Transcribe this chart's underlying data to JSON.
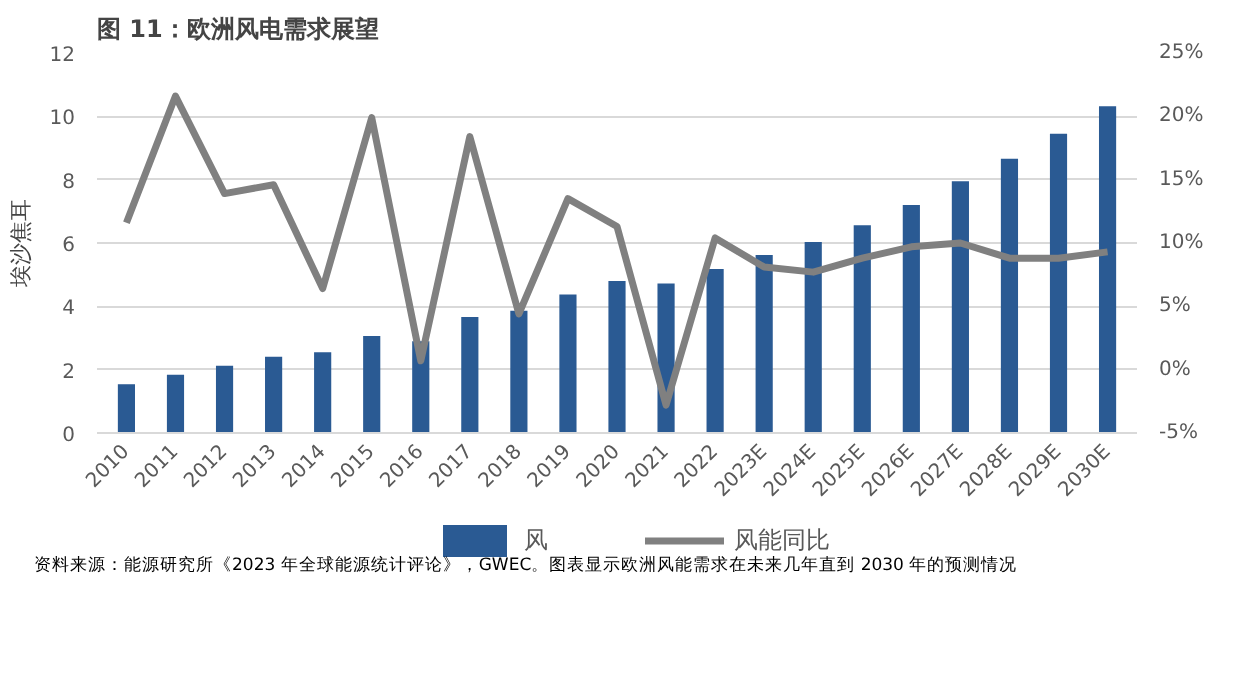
{
  "chart_data": {
    "type": "bar",
    "title": "图 11：欧洲风电需求展望",
    "ylabel": "埃沙焦耳",
    "categories": [
      "2010",
      "2011",
      "2012",
      "2013",
      "2014",
      "2015",
      "2016",
      "2017",
      "2018",
      "2019",
      "2020",
      "2021",
      "2022",
      "2023E",
      "2024E",
      "2025E",
      "2026E",
      "2027E",
      "2028E",
      "2029E",
      "2030E"
    ],
    "series": [
      {
        "name": "风",
        "type": "bar",
        "color": "#2a5a93",
        "values": [
          1.54,
          1.84,
          2.12,
          2.41,
          2.55,
          3.06,
          2.9,
          3.66,
          3.86,
          4.37,
          4.8,
          4.72,
          5.18,
          5.62,
          6.03,
          6.56,
          7.2,
          7.95,
          8.66,
          9.45,
          10.32
        ]
      },
      {
        "name": "风能同比",
        "type": "line",
        "axis": "y2",
        "color": "#808080",
        "values": [
          11.6,
          21.6,
          13.9,
          14.6,
          6.4,
          19.9,
          0.7,
          18.4,
          4.4,
          13.5,
          11.3,
          -2.8,
          10.4,
          8.1,
          7.7,
          8.8,
          9.7,
          10.0,
          8.8,
          8.8,
          9.3
        ]
      }
    ],
    "ylim": [
      0,
      12
    ],
    "yticks": [
      0,
      2,
      4,
      6,
      8,
      10,
      12
    ],
    "y2lim": [
      -5,
      25
    ],
    "y2ticks": [
      {
        "value": -5,
        "label": "-5%"
      },
      {
        "value": 0,
        "label": "0%"
      },
      {
        "value": 5,
        "label": "5%"
      },
      {
        "value": 10,
        "label": "10%"
      },
      {
        "value": 15,
        "label": "15%"
      },
      {
        "value": 20,
        "label": "20%"
      },
      {
        "value": 25,
        "label": "25%"
      }
    ],
    "grid": "y",
    "legend": "bottom",
    "marker": "none",
    "line_style": "solid",
    "annotations": [
      "资料来源：能源研究所《2023 年全球能源统计评论》，GWEC。图表显示欧洲风能需求在未来几年直到 2030 年的预测情况"
    ]
  }
}
